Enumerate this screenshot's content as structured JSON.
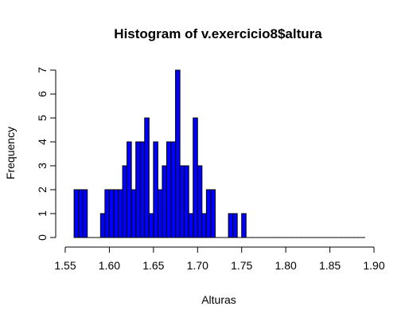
{
  "chart_data": {
    "type": "bar",
    "title": "Histogram of v.exercicio8$altura",
    "xlabel": "Alturas",
    "ylabel": "Frequency",
    "bar_color": "#0000ff",
    "border_color": "#000000",
    "bin_width": 0.005,
    "bins_start": [
      1.56,
      1.565,
      1.57,
      1.575,
      1.58,
      1.585,
      1.59,
      1.595,
      1.6,
      1.605,
      1.61,
      1.615,
      1.62,
      1.625,
      1.63,
      1.635,
      1.64,
      1.645,
      1.65,
      1.655,
      1.66,
      1.665,
      1.67,
      1.675,
      1.68,
      1.685,
      1.69,
      1.695,
      1.7,
      1.705,
      1.71,
      1.715,
      1.72,
      1.725,
      1.73,
      1.735,
      1.74,
      1.745,
      1.75,
      1.755,
      1.76,
      1.765,
      1.77,
      1.775,
      1.78,
      1.785,
      1.79,
      1.795,
      1.8,
      1.805,
      1.81,
      1.815,
      1.82,
      1.825,
      1.83,
      1.835,
      1.84,
      1.845,
      1.85,
      1.855,
      1.86,
      1.865,
      1.87,
      1.875,
      1.88,
      1.885
    ],
    "values": [
      2,
      2,
      2,
      0,
      0,
      0,
      1,
      2,
      2,
      2,
      2,
      3,
      4,
      2,
      4,
      4,
      5,
      1,
      4,
      2,
      3,
      4,
      4,
      7,
      3,
      3,
      1,
      5,
      3,
      1,
      2,
      2,
      0,
      0,
      0,
      1,
      1,
      0,
      1,
      0,
      0,
      0,
      0,
      0,
      0,
      0,
      0,
      0,
      0,
      0,
      0,
      0,
      0,
      0,
      0,
      0,
      0,
      0,
      0,
      0,
      0,
      0,
      0,
      0,
      0,
      0
    ],
    "xlim": [
      1.55,
      1.9
    ],
    "ylim": [
      0,
      7
    ],
    "xticks": [
      "1.55",
      "1.60",
      "1.65",
      "1.70",
      "1.75",
      "1.80",
      "1.85",
      "1.90"
    ],
    "yticks": [
      "0",
      "1",
      "2",
      "3",
      "4",
      "5",
      "6",
      "7"
    ]
  }
}
